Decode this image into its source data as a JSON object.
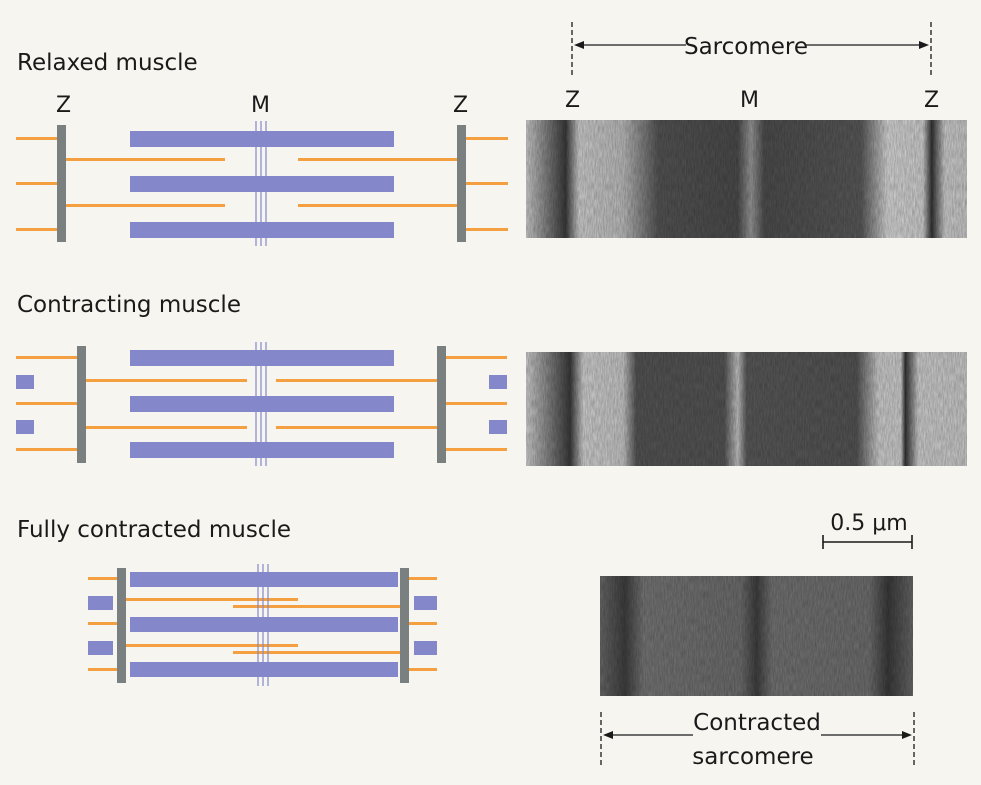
{
  "panels": [
    {
      "title": "Relaxed muscle"
    },
    {
      "title": "Contracting muscle"
    },
    {
      "title": "Fully contracted muscle"
    }
  ],
  "labels": {
    "z_left": "Z",
    "m": "M",
    "z_right": "Z",
    "sarcomere": "Sarcomere",
    "scale_bar": "0.5 μm",
    "contracted_line1": "Contracted",
    "contracted_line2": "sarcomere"
  },
  "colors": {
    "background": "#f7f5ef",
    "thick_filament": "#8487c9",
    "thin_filament": "#f4a040",
    "z_disc": "#7a7f80",
    "text": "#1a1a1a"
  }
}
